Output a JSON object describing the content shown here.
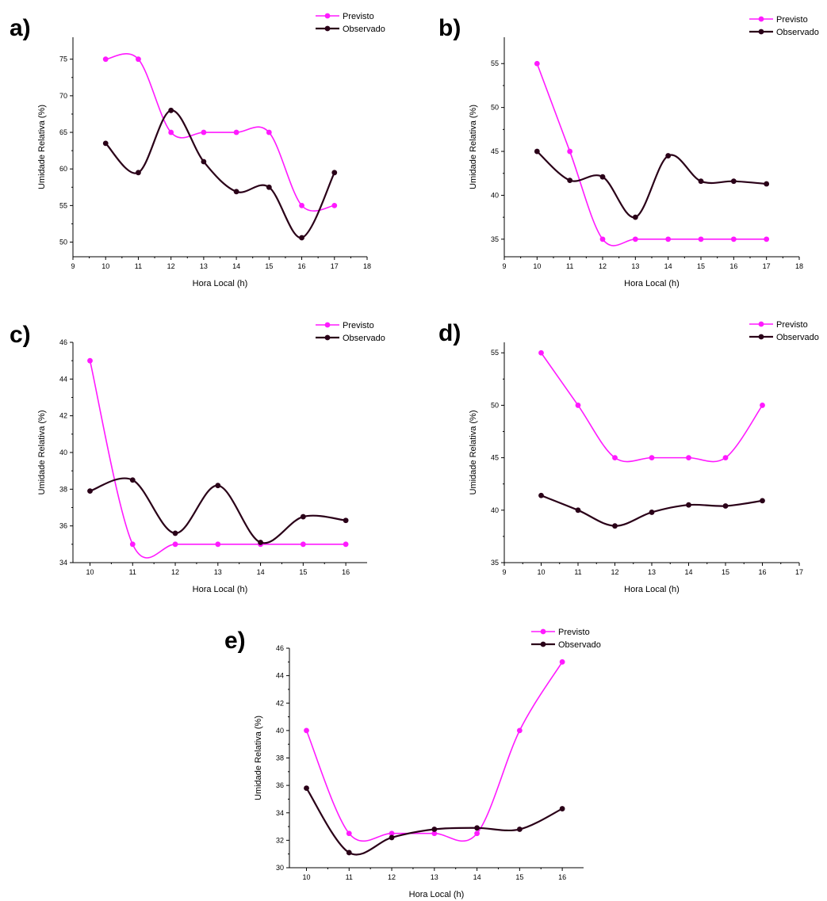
{
  "colors": {
    "previsto": "#ff1aff",
    "observado": "#2a0018",
    "axis": "#000000"
  },
  "chart_data": [
    {
      "type": "line",
      "panel": "a)",
      "xlabel": "Hora Local (h)",
      "ylabel": "Umidade Relativa (%)",
      "xlim": [
        9,
        18
      ],
      "ylim": [
        48,
        78
      ],
      "xticks": [
        9,
        10,
        11,
        12,
        13,
        14,
        15,
        16,
        17,
        18
      ],
      "yticks": [
        50,
        55,
        60,
        65,
        70,
        75
      ],
      "legend": "top-right",
      "x": [
        10,
        11,
        12,
        13,
        14,
        15,
        16,
        17
      ],
      "series": [
        {
          "name": "Previsto",
          "values": [
            75,
            75,
            65,
            65,
            65,
            65,
            55,
            55
          ]
        },
        {
          "name": "Observado",
          "values": [
            63.5,
            59.5,
            68,
            61,
            56.9,
            57.5,
            50.6,
            59.5
          ]
        }
      ]
    },
    {
      "type": "line",
      "panel": "b)",
      "xlabel": "Hora Local (h)",
      "ylabel": "Umidade Relativa (%)",
      "xlim": [
        9,
        18
      ],
      "ylim": [
        33,
        58
      ],
      "xticks": [
        9,
        10,
        11,
        12,
        13,
        14,
        15,
        16,
        17,
        18
      ],
      "yticks": [
        35,
        40,
        45,
        50,
        55
      ],
      "legend": "top-right",
      "x": [
        10,
        11,
        12,
        13,
        14,
        15,
        16,
        17
      ],
      "series": [
        {
          "name": "Previsto",
          "values": [
            55,
            45,
            35,
            35,
            35,
            35,
            35,
            35
          ]
        },
        {
          "name": "Observado",
          "values": [
            45,
            41.7,
            42.1,
            37.5,
            44.5,
            41.6,
            41.6,
            41.3
          ]
        }
      ]
    },
    {
      "type": "line",
      "panel": "c)",
      "xlabel": "Hora Local (h)",
      "ylabel": "Umidade Relativa (%)",
      "xlim": [
        9.6,
        16.5
      ],
      "ylim": [
        34,
        46
      ],
      "xticks": [
        10,
        11,
        12,
        13,
        14,
        15,
        16
      ],
      "yticks": [
        34,
        36,
        38,
        40,
        42,
        44,
        46
      ],
      "legend": "top-right",
      "x": [
        10,
        11,
        12,
        13,
        14,
        15,
        16
      ],
      "series": [
        {
          "name": "Previsto",
          "values": [
            45,
            35,
            35,
            35,
            35,
            35,
            35
          ]
        },
        {
          "name": "Observado",
          "values": [
            37.9,
            38.5,
            35.6,
            38.2,
            35.1,
            36.5,
            36.3
          ]
        }
      ]
    },
    {
      "type": "line",
      "panel": "d)",
      "xlabel": "Hora Local (h)",
      "ylabel": "Umidade Relativa (%)",
      "xlim": [
        9,
        17
      ],
      "ylim": [
        35,
        56
      ],
      "xticks": [
        9,
        10,
        11,
        12,
        13,
        14,
        15,
        16,
        17
      ],
      "yticks": [
        35,
        40,
        45,
        50,
        55
      ],
      "legend": "top-right",
      "x": [
        10,
        11,
        12,
        13,
        14,
        15,
        16
      ],
      "series": [
        {
          "name": "Previsto",
          "values": [
            55,
            50,
            45,
            45,
            45,
            45,
            50
          ]
        },
        {
          "name": "Observado",
          "values": [
            41.4,
            40,
            38.5,
            39.8,
            40.5,
            40.4,
            40.9
          ]
        }
      ]
    },
    {
      "type": "line",
      "panel": "e)",
      "xlabel": "Hora Local (h)",
      "ylabel": "Umidade Relativa (%)",
      "xlim": [
        9.6,
        16.5
      ],
      "ylim": [
        30,
        46
      ],
      "xticks": [
        10,
        11,
        12,
        13,
        14,
        15,
        16
      ],
      "yticks": [
        30,
        32,
        34,
        36,
        38,
        40,
        42,
        44,
        46
      ],
      "legend": "top-right",
      "x": [
        10,
        11,
        12,
        13,
        14,
        15,
        16
      ],
      "series": [
        {
          "name": "Previsto",
          "values": [
            40,
            32.5,
            32.5,
            32.5,
            32.5,
            40,
            45
          ]
        },
        {
          "name": "Observado",
          "values": [
            35.8,
            31.1,
            32.2,
            32.8,
            32.9,
            32.8,
            34.3
          ]
        }
      ]
    }
  ]
}
